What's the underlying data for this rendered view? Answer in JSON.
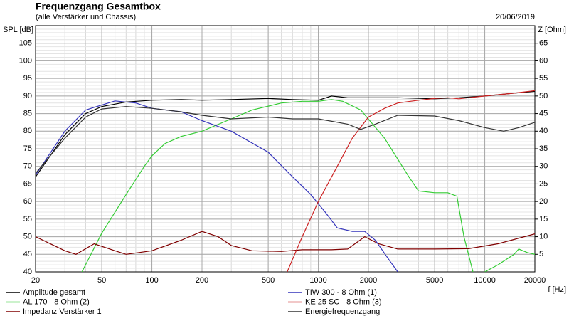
{
  "chart_data": {
    "type": "line",
    "title": "Frequenzgang Gesamtbox",
    "subtitle": "(alle Verstärker und Chassis)",
    "date": "20/06/2019",
    "y_label": "SPL [dB]",
    "y2_label": "Z [Ohm]",
    "x_label": "f [Hz]",
    "x_log": true,
    "grid": true,
    "xlim": [
      20,
      20000
    ],
    "xticks": [
      20,
      50,
      100,
      200,
      500,
      1000,
      2000,
      5000,
      10000,
      20000
    ],
    "ylim": [
      40,
      110
    ],
    "yticks": [
      40,
      45,
      50,
      55,
      60,
      65,
      70,
      75,
      80,
      85,
      90,
      95,
      100,
      105
    ],
    "y2lim": [
      0,
      70
    ],
    "y2ticks": [
      5,
      10,
      15,
      20,
      25,
      30,
      35,
      40,
      45,
      50,
      55,
      60,
      65
    ],
    "series": [
      {
        "name": "Amplitude gesamt",
        "color": "#000000",
        "x": [
          20,
          30,
          40,
          50,
          70,
          100,
          150,
          200,
          300,
          500,
          700,
          1000,
          1200,
          1500,
          2000,
          3000,
          5000,
          7000,
          10000,
          15000,
          20000
        ],
        "values": [
          67,
          79,
          85,
          87,
          88.3,
          88.8,
          89,
          88.8,
          89,
          89.3,
          89,
          88.8,
          90,
          89.5,
          89.5,
          89.5,
          89.2,
          89.5,
          90,
          90.8,
          91.3
        ]
      },
      {
        "name": "AL 170 - 8 Ohm (2)",
        "color": "#33cc33",
        "x": [
          38,
          50,
          70,
          90,
          100,
          120,
          150,
          200,
          300,
          400,
          600,
          800,
          1000,
          1200,
          1400,
          1800,
          2500,
          3500,
          4000,
          5000,
          6000,
          6800,
          7500,
          8500,
          9000,
          10000,
          12000,
          15000,
          16000,
          18000,
          20000
        ],
        "values": [
          40,
          51,
          62,
          70,
          73,
          76.5,
          78.5,
          80,
          83.5,
          86,
          88,
          88.5,
          88.5,
          89,
          88.5,
          86,
          78,
          67,
          63,
          62.5,
          62.5,
          61.5,
          50,
          40,
          null,
          40,
          42,
          45,
          46.5,
          45.5,
          45
        ]
      },
      {
        "name": "Impedanz Verstärker 1",
        "color": "#800000",
        "axis": "y2",
        "x": [
          20,
          30,
          35,
          45,
          60,
          70,
          100,
          150,
          200,
          250,
          300,
          400,
          600,
          800,
          1200,
          1500,
          1900,
          2300,
          3000,
          5000,
          8000,
          12000,
          20000
        ],
        "values": [
          10,
          6,
          5,
          8,
          6,
          5,
          6,
          9,
          11.5,
          10,
          7.5,
          6,
          5.8,
          6.3,
          6.3,
          6.5,
          10,
          8,
          6.5,
          6.5,
          6.6,
          8,
          10.8
        ]
      },
      {
        "name": "TIW 300 - 8 Ohm (1)",
        "color": "#3333bb",
        "x": [
          20,
          30,
          40,
          60,
          80,
          100,
          150,
          200,
          300,
          500,
          700,
          900,
          1100,
          1300,
          1600,
          1900,
          2200,
          2700,
          3000
        ],
        "values": [
          67.5,
          80,
          86,
          88.6,
          88,
          86.5,
          85.5,
          83,
          80,
          74,
          67,
          62,
          57,
          52.5,
          51.5,
          51.5,
          49,
          43,
          40
        ]
      },
      {
        "name": "KE 25 SC - 8 Ohm    (3)",
        "color": "#cc2222",
        "x": [
          650,
          800,
          1000,
          1300,
          1600,
          2000,
          2500,
          3000,
          4000,
          5000,
          6000,
          7000,
          8000,
          10000,
          15000,
          20000
        ],
        "values": [
          40,
          50,
          60,
          70,
          78,
          84,
          86.5,
          88,
          88.8,
          89.3,
          89.5,
          89.2,
          89.5,
          90,
          90.8,
          91.5
        ]
      },
      {
        "name": "Energiefrequenzgang",
        "color": "#333333",
        "x": [
          20,
          30,
          40,
          50,
          70,
          100,
          150,
          200,
          300,
          500,
          700,
          1000,
          1500,
          1800,
          2200,
          3000,
          5000,
          7000,
          10000,
          13000,
          16000,
          20000
        ],
        "values": [
          68,
          78,
          84,
          86.3,
          87,
          86.5,
          85.5,
          84.5,
          83.5,
          84,
          83.5,
          83.5,
          82,
          80.5,
          82,
          84.5,
          84.3,
          83,
          81,
          80,
          81,
          82.5
        ]
      }
    ]
  }
}
